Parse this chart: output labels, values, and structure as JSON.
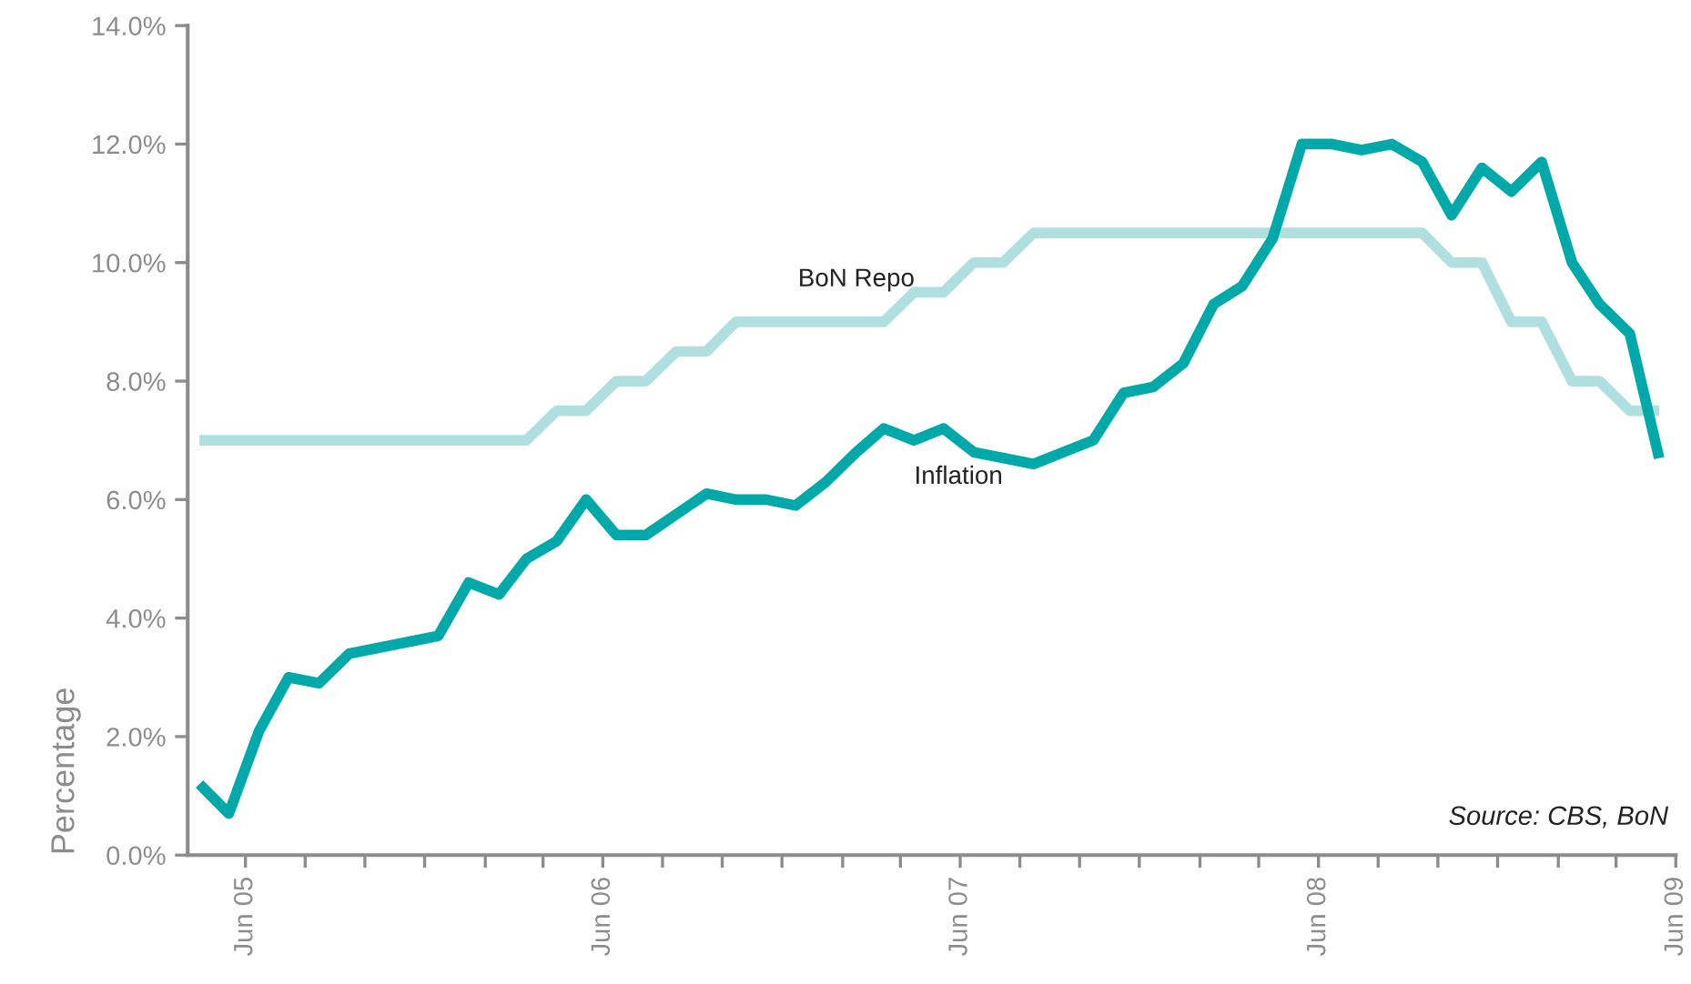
{
  "chart_data": {
    "type": "line",
    "ylabel": "Percentage",
    "annotations": [
      "Source: CBS, BoN"
    ],
    "series": [
      {
        "name": "BoN Repo",
        "color": "#b0dfe0",
        "x": [
          "2005-04-15",
          "2006-03-15",
          "2006-04-15",
          "2006-05-15",
          "2006-06-15",
          "2006-07-15",
          "2006-08-15",
          "2006-09-15",
          "2006-10-15",
          "2007-03-15",
          "2007-04-15",
          "2007-05-15",
          "2007-06-15",
          "2007-07-15",
          "2007-08-15",
          "2008-09-15",
          "2008-10-15",
          "2008-11-15",
          "2008-12-15",
          "2009-01-15",
          "2009-02-15",
          "2009-03-15",
          "2009-04-15",
          "2009-05-15"
        ],
        "values": [
          7.0,
          7.0,
          7.5,
          7.5,
          8.0,
          8.0,
          8.5,
          8.5,
          9.0,
          9.0,
          9.5,
          9.5,
          10.0,
          10.0,
          10.5,
          10.5,
          10.0,
          10.0,
          9.0,
          9.0,
          8.0,
          8.0,
          7.5,
          7.5
        ]
      },
      {
        "name": "Inflation",
        "color": "#00a9a9",
        "x": [
          "2005-04-15",
          "2005-05-15",
          "2005-06-15",
          "2005-07-15",
          "2005-08-15",
          "2005-09-15",
          "2005-12-15",
          "2006-01-15",
          "2006-02-15",
          "2006-03-15",
          "2006-04-15",
          "2006-05-15",
          "2006-06-15",
          "2006-07-15",
          "2006-09-15",
          "2006-10-15",
          "2006-11-15",
          "2006-12-15",
          "2007-01-15",
          "2007-02-15",
          "2007-03-15",
          "2007-04-15",
          "2007-05-15",
          "2007-06-15",
          "2007-08-15",
          "2007-10-15",
          "2007-11-15",
          "2007-12-15",
          "2008-01-15",
          "2008-02-15",
          "2008-03-15",
          "2008-04-15",
          "2008-05-15",
          "2008-06-15",
          "2008-07-15",
          "2008-08-15",
          "2008-09-15",
          "2008-10-15",
          "2008-11-15",
          "2008-12-15",
          "2009-01-15",
          "2009-02-15",
          "2009-03-15",
          "2009-04-15",
          "2009-05-15"
        ],
        "values": [
          1.2,
          0.7,
          2.1,
          3.0,
          2.9,
          3.4,
          3.7,
          4.6,
          4.4,
          5.0,
          5.3,
          6.0,
          5.4,
          5.4,
          6.1,
          6.0,
          6.0,
          5.9,
          6.3,
          6.8,
          7.2,
          7.0,
          7.2,
          6.8,
          6.6,
          7.0,
          7.8,
          7.9,
          8.3,
          9.3,
          9.6,
          10.4,
          12.0,
          12.0,
          11.9,
          12.0,
          11.7,
          10.8,
          11.6,
          11.2,
          11.7,
          10.0,
          9.3,
          8.8,
          6.7
        ]
      }
    ],
    "xlim": [
      "2005-04-03",
      "2009-06-01"
    ],
    "xticks": [
      {
        "value": "2005-06-01",
        "label": "Jun 05"
      },
      {
        "value": "2005-08-01",
        "label": null
      },
      {
        "value": "2005-10-01",
        "label": null
      },
      {
        "value": "2005-12-01",
        "label": null
      },
      {
        "value": "2006-02-01",
        "label": null
      },
      {
        "value": "2006-04-01",
        "label": null
      },
      {
        "value": "2006-06-01",
        "label": "Jun 06"
      },
      {
        "value": "2006-08-01",
        "label": null
      },
      {
        "value": "2006-10-01",
        "label": null
      },
      {
        "value": "2006-12-01",
        "label": null
      },
      {
        "value": "2007-02-01",
        "label": null
      },
      {
        "value": "2007-04-01",
        "label": null
      },
      {
        "value": "2007-06-01",
        "label": "Jun 07"
      },
      {
        "value": "2007-08-01",
        "label": null
      },
      {
        "value": "2007-10-01",
        "label": null
      },
      {
        "value": "2007-12-01",
        "label": null
      },
      {
        "value": "2008-02-01",
        "label": null
      },
      {
        "value": "2008-04-01",
        "label": null
      },
      {
        "value": "2008-06-01",
        "label": "Jun 08"
      },
      {
        "value": "2008-08-01",
        "label": null
      },
      {
        "value": "2008-10-01",
        "label": null
      },
      {
        "value": "2008-12-01",
        "label": null
      },
      {
        "value": "2009-02-01",
        "label": null
      },
      {
        "value": "2009-04-01",
        "label": null
      },
      {
        "value": "2009-06-01",
        "label": "Jun 09"
      }
    ],
    "ylim": [
      0,
      14
    ],
    "yticks": [
      {
        "value": 0,
        "label": "0.0%"
      },
      {
        "value": 2,
        "label": "2.0%"
      },
      {
        "value": 4,
        "label": "4.0%"
      },
      {
        "value": 6,
        "label": "6.0%"
      },
      {
        "value": 8,
        "label": "8.0%"
      },
      {
        "value": 10,
        "label": "10.0%"
      },
      {
        "value": 12,
        "label": "12.0%"
      },
      {
        "value": 14,
        "label": "14.0%"
      }
    ],
    "grid": false,
    "legend": false,
    "line_style": "solid",
    "marker": "none"
  }
}
